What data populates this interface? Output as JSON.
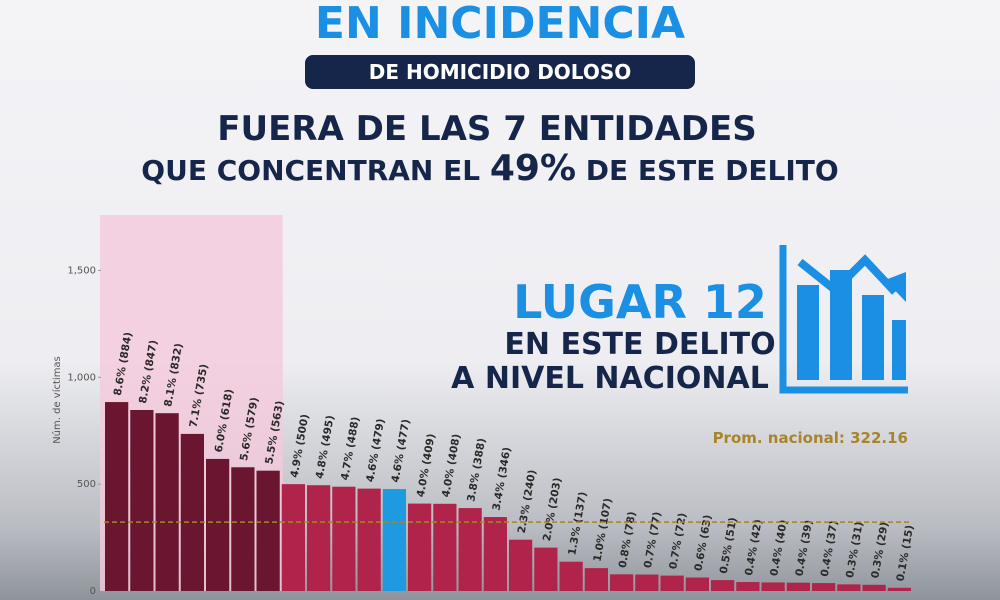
{
  "header": {
    "headline": "EN INCIDENCIA",
    "badge": "DE HOMICIDIO DOLOSO",
    "line1": "FUERA DE LAS 7 ENTIDADES",
    "line2": [
      "QUE CONCENTRAN EL ",
      "49%",
      " DE ESTE DELITO"
    ]
  },
  "rank": {
    "title": "LUGAR 12",
    "line1": "EN ESTE DELITO",
    "line2": "A NIVEL NACIONAL"
  },
  "chart_data": {
    "type": "bar",
    "y_label": "Núm. de víctimas",
    "categories": [
      null,
      null,
      null,
      null,
      null,
      null,
      null,
      null,
      null,
      null,
      null,
      null,
      null,
      null,
      null,
      null,
      null,
      null,
      null,
      null,
      null,
      null,
      null,
      null,
      null,
      null,
      null,
      null,
      null,
      null,
      null,
      null
    ],
    "values": [
      884,
      847,
      832,
      735,
      618,
      579,
      563,
      500,
      495,
      488,
      479,
      477,
      409,
      408,
      388,
      346,
      240,
      203,
      137,
      107,
      78,
      77,
      72,
      63,
      51,
      42,
      40,
      39,
      37,
      31,
      29,
      15
    ],
    "value_labels": [
      "8.6% (884)",
      "8.2% (847)",
      "8.1% (832)",
      "7.1% (735)",
      "6.0% (618)",
      "5.6% (579)",
      "5.5% (563)",
      "4.9% (500)",
      "4.8% (495)",
      "4.7% (488)",
      "4.6% (479)",
      "4.6% (477)",
      "4.0% (409)",
      "4.0% (408)",
      "3.8% (388)",
      "3.4% (346)",
      "2.3% (240)",
      "2.0% (203)",
      "1.3% (137)",
      "1.0% (107)",
      "0.8% (78)",
      "0.7% (77)",
      "0.7% (72)",
      "0.6% (63)",
      "0.5% (51)",
      "0.4% (42)",
      "0.4% (40)",
      "0.4% (39)",
      "0.4% (37)",
      "0.3% (31)",
      "0.3% (29)",
      "0.1% (15)"
    ],
    "colors": [
      "#6b1631",
      "#6b1631",
      "#6b1631",
      "#6b1631",
      "#6b1631",
      "#6b1631",
      "#6b1631",
      "#b0234a",
      "#b0234a",
      "#b0234a",
      "#b0234a",
      "#1e9be0",
      "#b0234a",
      "#b0234a",
      "#b0234a",
      "#b0234a",
      "#b0234a",
      "#b0234a",
      "#b0234a",
      "#b0234a",
      "#b0234a",
      "#b0234a",
      "#b0234a",
      "#b0234a",
      "#b0234a",
      "#b0234a",
      "#b0234a",
      "#b0234a",
      "#b0234a",
      "#b0234a",
      "#b0234a",
      "#b0234a"
    ],
    "ylim": [
      0,
      1750
    ],
    "yticks": [
      0,
      500,
      {
        "value": 1000,
        "label": "1,000"
      },
      {
        "value": 1500,
        "label": "1,500"
      }
    ],
    "average": 322.16,
    "average_label": "Prom. nacional: 322.16",
    "average_color": "#a8842a"
  }
}
